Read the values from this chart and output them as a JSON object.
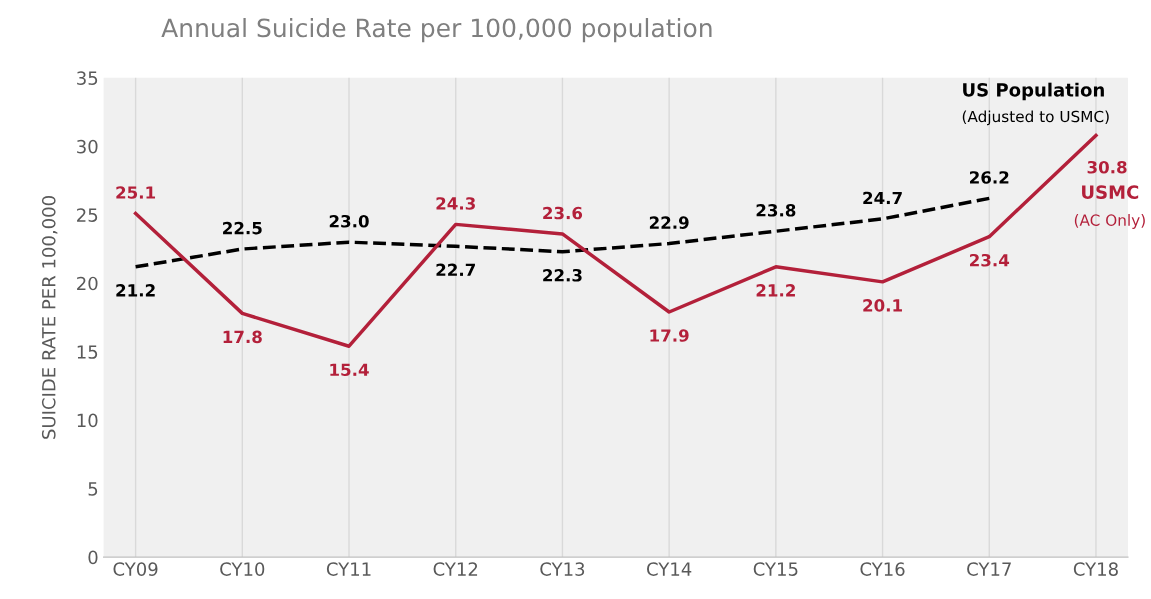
{
  "chart_data": {
    "type": "line",
    "title": "Annual Suicide Rate per 100,000 population",
    "ylabel": "SUICIDE RATE PER 100,000",
    "categories": [
      "CY09",
      "CY10",
      "CY11",
      "CY12",
      "CY13",
      "CY14",
      "CY15",
      "CY16",
      "CY17",
      "CY18"
    ],
    "series": [
      {
        "name": "US Population",
        "color": "#000000",
        "line_style": "dashed",
        "values": [
          21.2,
          22.5,
          23.0,
          22.7,
          22.3,
          22.9,
          23.8,
          24.7,
          26.2,
          null
        ],
        "value_labels": [
          "21.2",
          "22.5",
          "23.0",
          "22.7",
          "22.3",
          "22.9",
          "23.8",
          "24.7",
          "26.2",
          null
        ]
      },
      {
        "name": "USMC",
        "color": "#b3203a",
        "line_style": "solid",
        "values": [
          25.1,
          17.8,
          15.4,
          24.3,
          23.6,
          17.9,
          21.2,
          20.1,
          23.4,
          30.8
        ],
        "value_labels": [
          "25.1",
          "17.8",
          "15.4",
          "24.3",
          "23.6",
          "17.9",
          "21.2",
          "20.1",
          "23.4",
          "30.8"
        ]
      }
    ],
    "annotations": [
      "(Adjusted to USMC)",
      "(AC Only)"
    ],
    "ylim": [
      0,
      35
    ],
    "yticks": [
      0,
      5,
      10,
      15,
      20,
      25,
      30,
      35
    ],
    "grid": "x",
    "marker": "none"
  }
}
